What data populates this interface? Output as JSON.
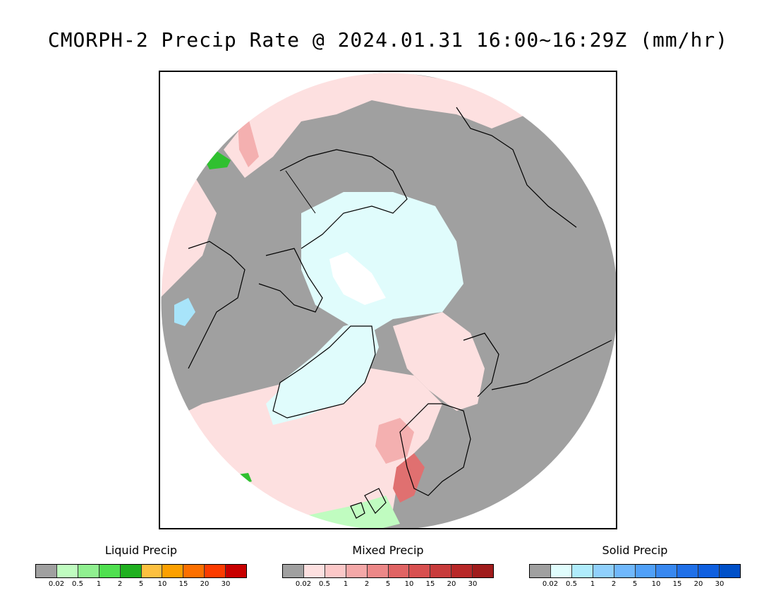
{
  "title": "CMORPH-2 Precip Rate @ 2024.01.31 16:00~16:29Z (mm/hr)",
  "map": {
    "projection": "north-polar-stereographic",
    "colors": {
      "no_precip": "#a0a0a0",
      "mixed_light": "#fde0e0",
      "mixed_mid": "#f4b0b0",
      "mixed_heavy": "#e07070",
      "solid_light": "#e0fcfc",
      "solid_mid": "#a8e4fa",
      "solid_heavy": "#80c0f0",
      "liquid_light": "#c0fcc0",
      "liquid_heavy": "#30c030",
      "coastline": "#000000"
    }
  },
  "legends": [
    {
      "title": "Liquid Precip",
      "colors": [
        "#a0a0a0",
        "#c0fcc0",
        "#90f090",
        "#50e050",
        "#20b020",
        "#fcc040",
        "#fca000",
        "#fc7000",
        "#fc3c00",
        "#c80000"
      ],
      "ticks": [
        "0.02",
        "0.5",
        "1",
        "2",
        "5",
        "10",
        "15",
        "20",
        "30"
      ]
    },
    {
      "title": "Mixed Precip",
      "colors": [
        "#a0a0a0",
        "#fde0e0",
        "#fcc8c8",
        "#f4a8a8",
        "#ec8888",
        "#e06464",
        "#d85050",
        "#c83c3c",
        "#b82828",
        "#a01c1c"
      ],
      "ticks": [
        "0.02",
        "0.5",
        "1",
        "2",
        "5",
        "10",
        "15",
        "20",
        "30"
      ]
    },
    {
      "title": "Solid Precip",
      "colors": [
        "#a0a0a0",
        "#e0fcfc",
        "#b0ecfc",
        "#90d0fc",
        "#70b8fc",
        "#50a0f8",
        "#3888f0",
        "#2070e8",
        "#1060e0",
        "#0050c8"
      ],
      "ticks": [
        "0.02",
        "0.5",
        "1",
        "2",
        "5",
        "10",
        "15",
        "20",
        "30"
      ]
    }
  ]
}
